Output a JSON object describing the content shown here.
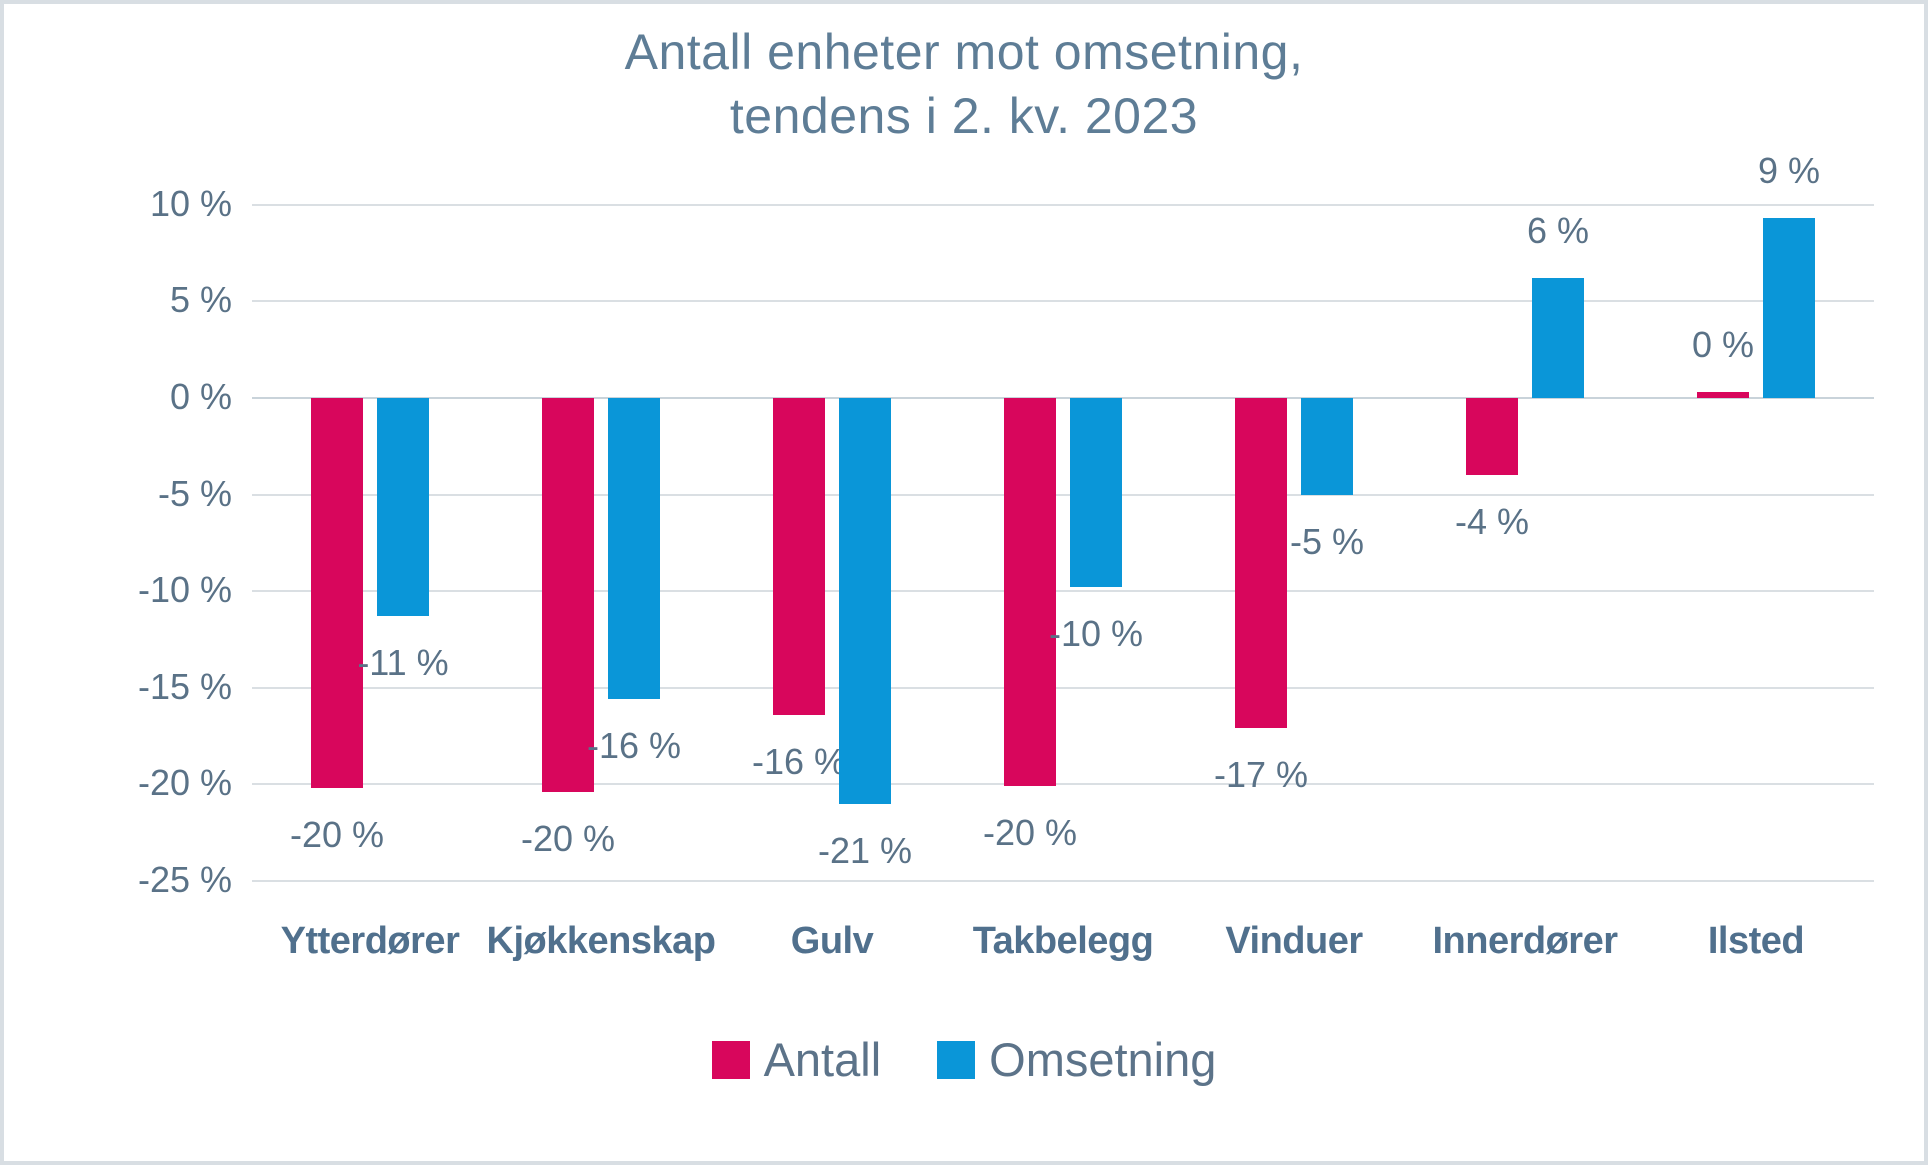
{
  "frame": {
    "background": "#ffffff",
    "border_color": "#d8dee3"
  },
  "title": {
    "line1": "Antall enheter mot omsetning,",
    "line2": "tendens i 2. kv. 2023",
    "color": "#5e7d96"
  },
  "legend": [
    {
      "label": "Antall",
      "color": "#d8065c"
    },
    {
      "label": "Omsetning",
      "color": "#0a96d8"
    }
  ],
  "chart_data": {
    "type": "bar",
    "title": "Antall enheter mot omsetning, tendens i 2. kv. 2023",
    "categories": [
      "Ytterdører",
      "Kjøkkenskap",
      "Gulv",
      "Takbelegg",
      "Vinduer",
      "Innerdører",
      "Ilsted"
    ],
    "series": [
      {
        "name": "Antall",
        "color": "#d8065c",
        "values": [
          -20.2,
          -20.4,
          -16.4,
          -20.1,
          -17.1,
          -4.0,
          0.3
        ],
        "labels": [
          "-20 %",
          "-20 %",
          "-16 %",
          "-20 %",
          "-17 %",
          "-4 %",
          "0 %"
        ]
      },
      {
        "name": "Omsetning",
        "color": "#0a96d8",
        "values": [
          -11.3,
          -15.6,
          -21.0,
          -9.8,
          -5.0,
          6.2,
          9.3
        ],
        "labels": [
          "-11 %",
          "-16 %",
          "-21 %",
          "-10 %",
          "-5 %",
          "6 %",
          "9 %"
        ]
      }
    ],
    "y_axis": {
      "unit": "%",
      "range": [
        -25,
        10
      ],
      "ticks": [
        {
          "value": 10,
          "label": "10 %"
        },
        {
          "value": 5,
          "label": "5 %"
        },
        {
          "value": 0,
          "label": "0 %"
        },
        {
          "value": -5,
          "label": "-5 %"
        },
        {
          "value": -10,
          "label": "-10 %"
        },
        {
          "value": -15,
          "label": "-15 %"
        },
        {
          "value": -20,
          "label": "-20 %"
        },
        {
          "value": -25,
          "label": "-25 %"
        }
      ]
    },
    "grid": "horizontal",
    "legend_position": "bottom",
    "data_labels": "outside-end"
  }
}
